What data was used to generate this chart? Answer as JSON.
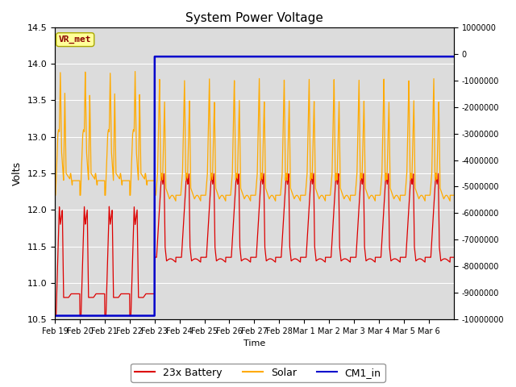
{
  "title": "System Power Voltage",
  "ylabel_left": "Volts",
  "xlabel": "Time",
  "ylim_left": [
    10.5,
    14.5
  ],
  "ylim_right": [
    -10000000,
    1000000
  ],
  "yticks_left": [
    10.5,
    11.0,
    11.5,
    12.0,
    12.5,
    13.0,
    13.5,
    14.0,
    14.5
  ],
  "yticks_right": [
    1000000,
    0,
    -1000000,
    -2000000,
    -3000000,
    -4000000,
    -5000000,
    -6000000,
    -7000000,
    -8000000,
    -9000000,
    -10000000
  ],
  "background_color": "#dcdcdc",
  "figure_background": "#ffffff",
  "vr_met_label": "VR_met",
  "vr_met_color": "#8b0000",
  "vr_met_bg": "#ffff99",
  "line_colors": {
    "battery": "#dd0000",
    "solar": "#ffaa00",
    "cm1": "#0000cc"
  },
  "legend_labels": [
    "23x Battery",
    "Solar",
    "CM1_in"
  ],
  "xtick_labels": [
    "Feb 19",
    "Feb 20",
    "Feb 21",
    "Feb 22",
    "Feb 23",
    "Feb 24",
    "Feb 25",
    "Feb 26",
    "Feb 27",
    "Feb 28",
    "Mar 1",
    "Mar 2",
    "Mar 3",
    "Mar 4",
    "Mar 5",
    "Mar 6"
  ],
  "cm1_step_day": 4.0,
  "cm1_low_val": 10.55,
  "cm1_high_val": 14.1
}
